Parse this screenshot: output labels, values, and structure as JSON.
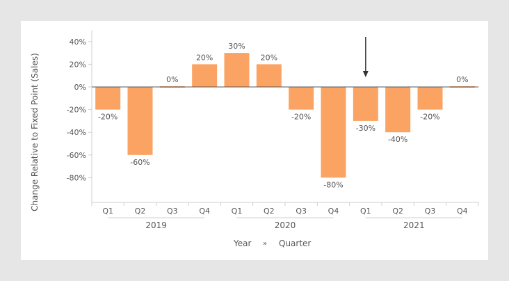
{
  "chart_data": {
    "type": "bar",
    "ylabel": "Change Relative to Fixed Point (Sales)",
    "xlabel_parts": [
      "Year",
      "»",
      "Quarter"
    ],
    "ylim": [
      -100,
      50
    ],
    "yticks": [
      40,
      20,
      0,
      -20,
      -40,
      -60,
      -80
    ],
    "ytick_labels": [
      "40%",
      "20%",
      "0%",
      "-20%",
      "-40%",
      "-60%",
      "-80%"
    ],
    "years": [
      "2019",
      "2020",
      "2021"
    ],
    "quarters": [
      "Q1",
      "Q2",
      "Q3",
      "Q4"
    ],
    "categories": [
      "Q1",
      "Q2",
      "Q3",
      "Q4",
      "Q1",
      "Q2",
      "Q3",
      "Q4",
      "Q1",
      "Q2",
      "Q3",
      "Q4"
    ],
    "category_years": [
      "2019",
      "2019",
      "2019",
      "2019",
      "2020",
      "2020",
      "2020",
      "2020",
      "2021",
      "2021",
      "2021",
      "2021"
    ],
    "values": [
      -20,
      -60,
      0,
      20,
      30,
      20,
      -20,
      -80,
      -30,
      -40,
      -20,
      0
    ],
    "value_labels": [
      "-20%",
      "-60%",
      "0%",
      "20%",
      "30%",
      "20%",
      "-20%",
      "-80%",
      "-30%",
      "-40%",
      "-20%",
      "0%"
    ],
    "fixed_point_index": 8,
    "bar_color": "#fba363",
    "grid": false
  }
}
